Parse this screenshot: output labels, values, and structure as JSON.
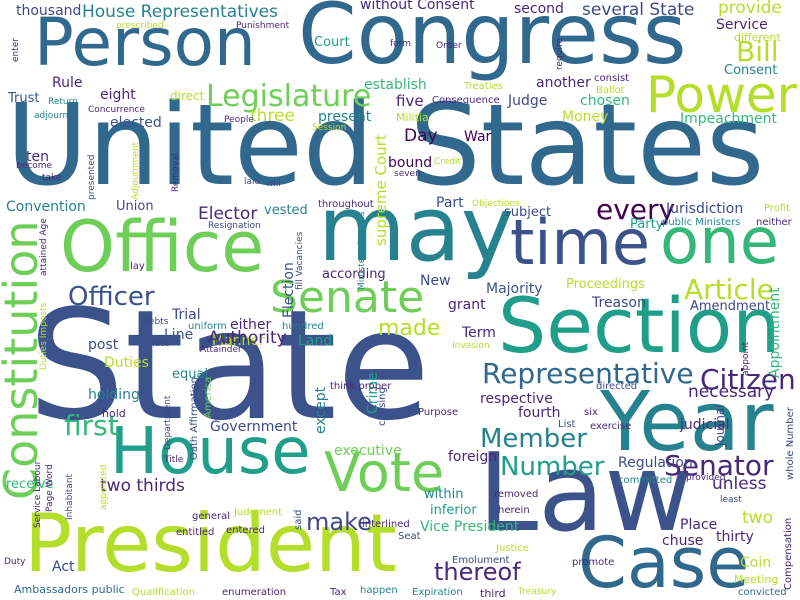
{
  "palette": {
    "c0": "#3b528b",
    "c1": "#31688e",
    "c2": "#26828e",
    "c3": "#1f9e89",
    "c4": "#35b779",
    "c5": "#6ece58",
    "c6": "#b5de2b",
    "c7": "#440154",
    "c8": "#482878",
    "c9": "#3e4989",
    "c10": "#fde725"
  },
  "words": {
    "state": "State",
    "united_states": "United States",
    "congress": "Congress",
    "person": "Person",
    "may": "may",
    "office": "Office",
    "time": "time",
    "one": "one",
    "section": "Section",
    "year": "Year",
    "law": "Law",
    "house": "House",
    "president": "President",
    "case": "Case",
    "vote": "Vote",
    "constitution": "Constitution",
    "power": "Power",
    "senate": "Senate",
    "legislature": "Legislature",
    "bill": "Bill",
    "article": "Article",
    "representative": "Representative",
    "citizen": "Citizen",
    "senator": "Senator",
    "member": "Member",
    "number": "Number",
    "every": "every",
    "officer": "Officer",
    "first": "first",
    "make": "make",
    "thereof": "thereof",
    "made": "made",
    "house_representatives": "House Representatives",
    "without_consent": "without Consent",
    "several_state": "several State",
    "thousand": "thousand",
    "second": "second",
    "provide": "provide",
    "service": "Service",
    "different": "different",
    "consent": "Consent",
    "consist": "consist",
    "impeachment": "Impeachment",
    "money": "Money",
    "chosen": "chosen",
    "judge": "Judge",
    "five": "five",
    "three": "three",
    "present": "present",
    "elected": "elected",
    "eight": "eight",
    "rule": "Rule",
    "trust": "Trust",
    "establish": "establish",
    "another": "another",
    "court": "Court",
    "day": "Day",
    "war": "War",
    "bound": "bound",
    "supreme_court": "supreme Court",
    "ten": "ten",
    "union": "Union",
    "elector": "Elector",
    "vested": "vested",
    "convention": "Convention",
    "throughout": "throughout",
    "subject": "subject",
    "part": "Part",
    "party": "Party",
    "jurisdiction": "Jurisdiction",
    "public_ministers": "public Ministers",
    "neither": "neither",
    "profit": "Profit",
    "election": "Election",
    "according": "according",
    "new": "New",
    "majority": "Majority",
    "proceedings": "Proceedings",
    "treason": "Treason",
    "amendment": "Amendment",
    "appointment": "Appointment",
    "grant": "grant",
    "trial": "Trial",
    "line": "Line",
    "either": "either",
    "manner": "Manner",
    "uniform": "uniform",
    "authority": "Authority",
    "land": "Land",
    "term": "Term",
    "post": "post",
    "duties": "Duties",
    "equal": "equal",
    "holding": "holding",
    "hold": "hold",
    "except": "except",
    "crime": "Crime",
    "respective": "respective",
    "fourth": "fourth",
    "necessary": "necessary",
    "judicial": "judicial",
    "journal": "Journal",
    "government": "Government",
    "executive": "executive",
    "foreign": "foreign",
    "regulation": "Regulation",
    "unless": "unless",
    "receive": "receive",
    "two_thirds": "two thirds",
    "within": "within",
    "inferior": "inferior",
    "vice_president": "Vice President",
    "place": "Place",
    "chuse": "chuse",
    "thirty": "thirty",
    "two": "two",
    "act": "Act",
    "coin": "Coin",
    "meeting": "Meeting",
    "ambassadors_public": "Ambassadors public",
    "qualification": "Qualification",
    "enumeration": "enumeration",
    "tax": "Tax",
    "happen": "happen",
    "expiration": "Expiration",
    "third": "third",
    "treasury": "Treasury",
    "convicted": "convicted",
    "compensation": "Compensation",
    "promote": "promote",
    "emolument": "Emolument",
    "justice": "Justice",
    "interlined": "interlined",
    "seat": "Seat",
    "herein": "herein",
    "removed": "removed",
    "committed": "committed",
    "provided": "provided",
    "least": "least",
    "whole_number": "whole Number",
    "judgment": "Judgment",
    "entered": "entered",
    "entitled": "entitled",
    "general": "general",
    "said": "said",
    "duty": "Duty",
    "title": "Title",
    "department": "Department",
    "oath_affirmation": "Oath Affirmation",
    "america": "America",
    "think_proper": "think proper",
    "chusing": "chusing",
    "purpose": "Purpose",
    "directed": "directed",
    "six": "six",
    "list": "List",
    "exercise": "exercise",
    "appoint": "appoint",
    "class": "Class",
    "debts": "Debts",
    "attainder": "Attainder",
    "hundred": "hundred",
    "invasion": "Invasion",
    "lay": "lay",
    "attained_age": "attained Age",
    "duties_imposts": "Duties Imposts",
    "inhabitant": "Inhabitant",
    "service_labour": "Service Labour",
    "page_word": "Page Word",
    "appointed": "appointed",
    "resignation": "Resignation",
    "fill_vacancies": "fill Vacancies",
    "ministers_consuls": "Ministers Consuls",
    "objections": "Objections",
    "credit": "Credit",
    "seven": "seven",
    "removal": "Removal",
    "laid": "laid",
    "will": "will",
    "adjournment": "Adjournment",
    "become": "become",
    "take": "take",
    "presented": "presented",
    "adjourn": "adjourn",
    "return": "Return",
    "concurrence": "Concurrence",
    "people": "People",
    "session": "Session",
    "militia": "Militia",
    "treaties": "Treaties",
    "consequence": "Consequence",
    "ballot": "Ballot",
    "require": "require",
    "form": "form",
    "order": "Order",
    "prescribed": "prescribed",
    "punishment": "Punishment",
    "enter": "enter",
    "direct": "direct"
  }
}
